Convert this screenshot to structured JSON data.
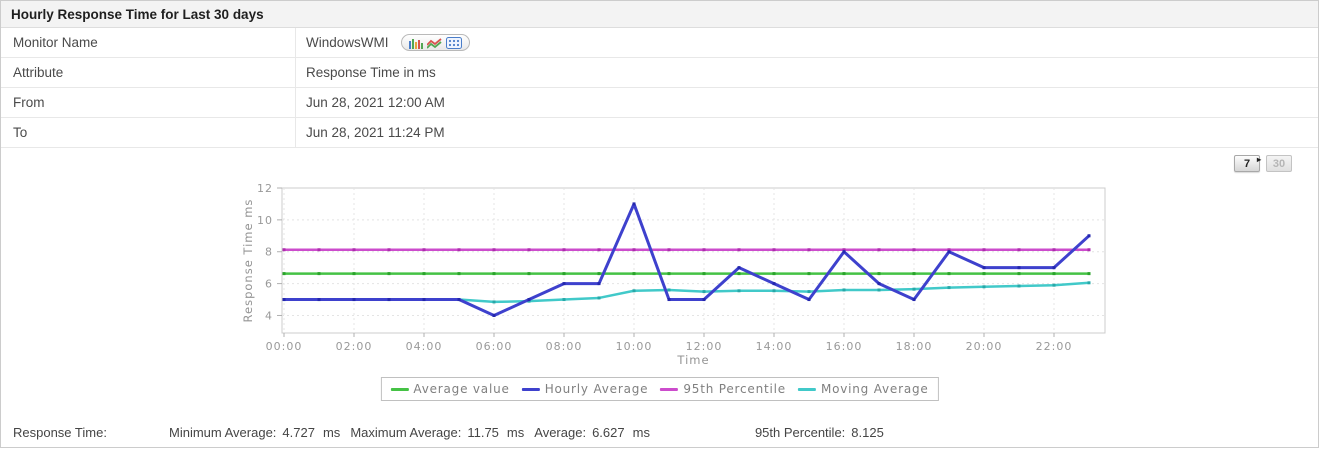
{
  "panel": {
    "title": "Hourly Response Time for Last 30 days"
  },
  "info_table": {
    "rows": [
      {
        "label": "Monitor Name",
        "value": "WindowsWMI"
      },
      {
        "label": "Attribute",
        "value": "Response Time in ms"
      },
      {
        "label": "From",
        "value": "Jun 28, 2021 12:00 AM"
      },
      {
        "label": "To",
        "value": "Jun 28, 2021 11:24 PM"
      }
    ],
    "monitor_view_icons": [
      "bar-chart-icon",
      "line-chart-icon",
      "table-view-icon"
    ]
  },
  "period_buttons": {
    "seven_label": "7",
    "thirty_label": "30"
  },
  "chart_data": {
    "type": "line",
    "title": "",
    "xlabel": "Time",
    "ylabel": "Response Time ms",
    "x_hours": [
      "00:00",
      "01:00",
      "02:00",
      "03:00",
      "04:00",
      "05:00",
      "06:00",
      "07:00",
      "08:00",
      "09:00",
      "10:00",
      "11:00",
      "12:00",
      "13:00",
      "14:00",
      "15:00",
      "16:00",
      "17:00",
      "18:00",
      "19:00",
      "20:00",
      "21:00",
      "22:00",
      "23:00"
    ],
    "x_tick_labels": [
      "00:00",
      "02:00",
      "04:00",
      "06:00",
      "08:00",
      "10:00",
      "12:00",
      "14:00",
      "16:00",
      "18:00",
      "20:00",
      "22:00"
    ],
    "y_ticks": [
      4,
      6,
      8,
      10,
      12
    ],
    "ylim": [
      2.9,
      12
    ],
    "grid": true,
    "legend_position": "bottom",
    "draw_order": [
      0,
      2,
      3,
      1
    ],
    "series": [
      {
        "name": "Average value",
        "color": "#45c245",
        "marker_color": "#2aa32a",
        "values": [
          6.627,
          6.627,
          6.627,
          6.627,
          6.627,
          6.627,
          6.627,
          6.627,
          6.627,
          6.627,
          6.627,
          6.627,
          6.627,
          6.627,
          6.627,
          6.627,
          6.627,
          6.627,
          6.627,
          6.627,
          6.627,
          6.627,
          6.627,
          6.627
        ]
      },
      {
        "name": "Hourly Average",
        "color": "#3e41cd",
        "marker_color": "#2427ad",
        "values": [
          5,
          5,
          5,
          5,
          5,
          5,
          4,
          5,
          6,
          6,
          11,
          5,
          5,
          7,
          6,
          5,
          8,
          6,
          5,
          8,
          7,
          7,
          7,
          9
        ]
      },
      {
        "name": "95th Percentile",
        "color": "#cc4ccc",
        "marker_color": "#ad2cad",
        "values": [
          8.125,
          8.125,
          8.125,
          8.125,
          8.125,
          8.125,
          8.125,
          8.125,
          8.125,
          8.125,
          8.125,
          8.125,
          8.125,
          8.125,
          8.125,
          8.125,
          8.125,
          8.125,
          8.125,
          8.125,
          8.125,
          8.125,
          8.125,
          8.125
        ]
      },
      {
        "name": "Moving Average",
        "color": "#41c9c9",
        "marker_color": "#27a8a8",
        "values": [
          5,
          5,
          5,
          5,
          5,
          5,
          4.85,
          4.9,
          5,
          5.1,
          5.55,
          5.6,
          5.5,
          5.55,
          5.55,
          5.5,
          5.6,
          5.6,
          5.65,
          5.75,
          5.8,
          5.85,
          5.9,
          6.05
        ]
      }
    ]
  },
  "stats": {
    "row_label": "Response Time:",
    "items": [
      {
        "label": "Minimum Average:",
        "value": "4.727",
        "unit": "ms"
      },
      {
        "label": "Maximum Average:",
        "value": "11.75",
        "unit": "ms"
      },
      {
        "label": "Average:",
        "value": "6.627",
        "unit": "ms"
      },
      {
        "label": "95th Percentile:",
        "value": "8.125",
        "unit": ""
      }
    ]
  }
}
